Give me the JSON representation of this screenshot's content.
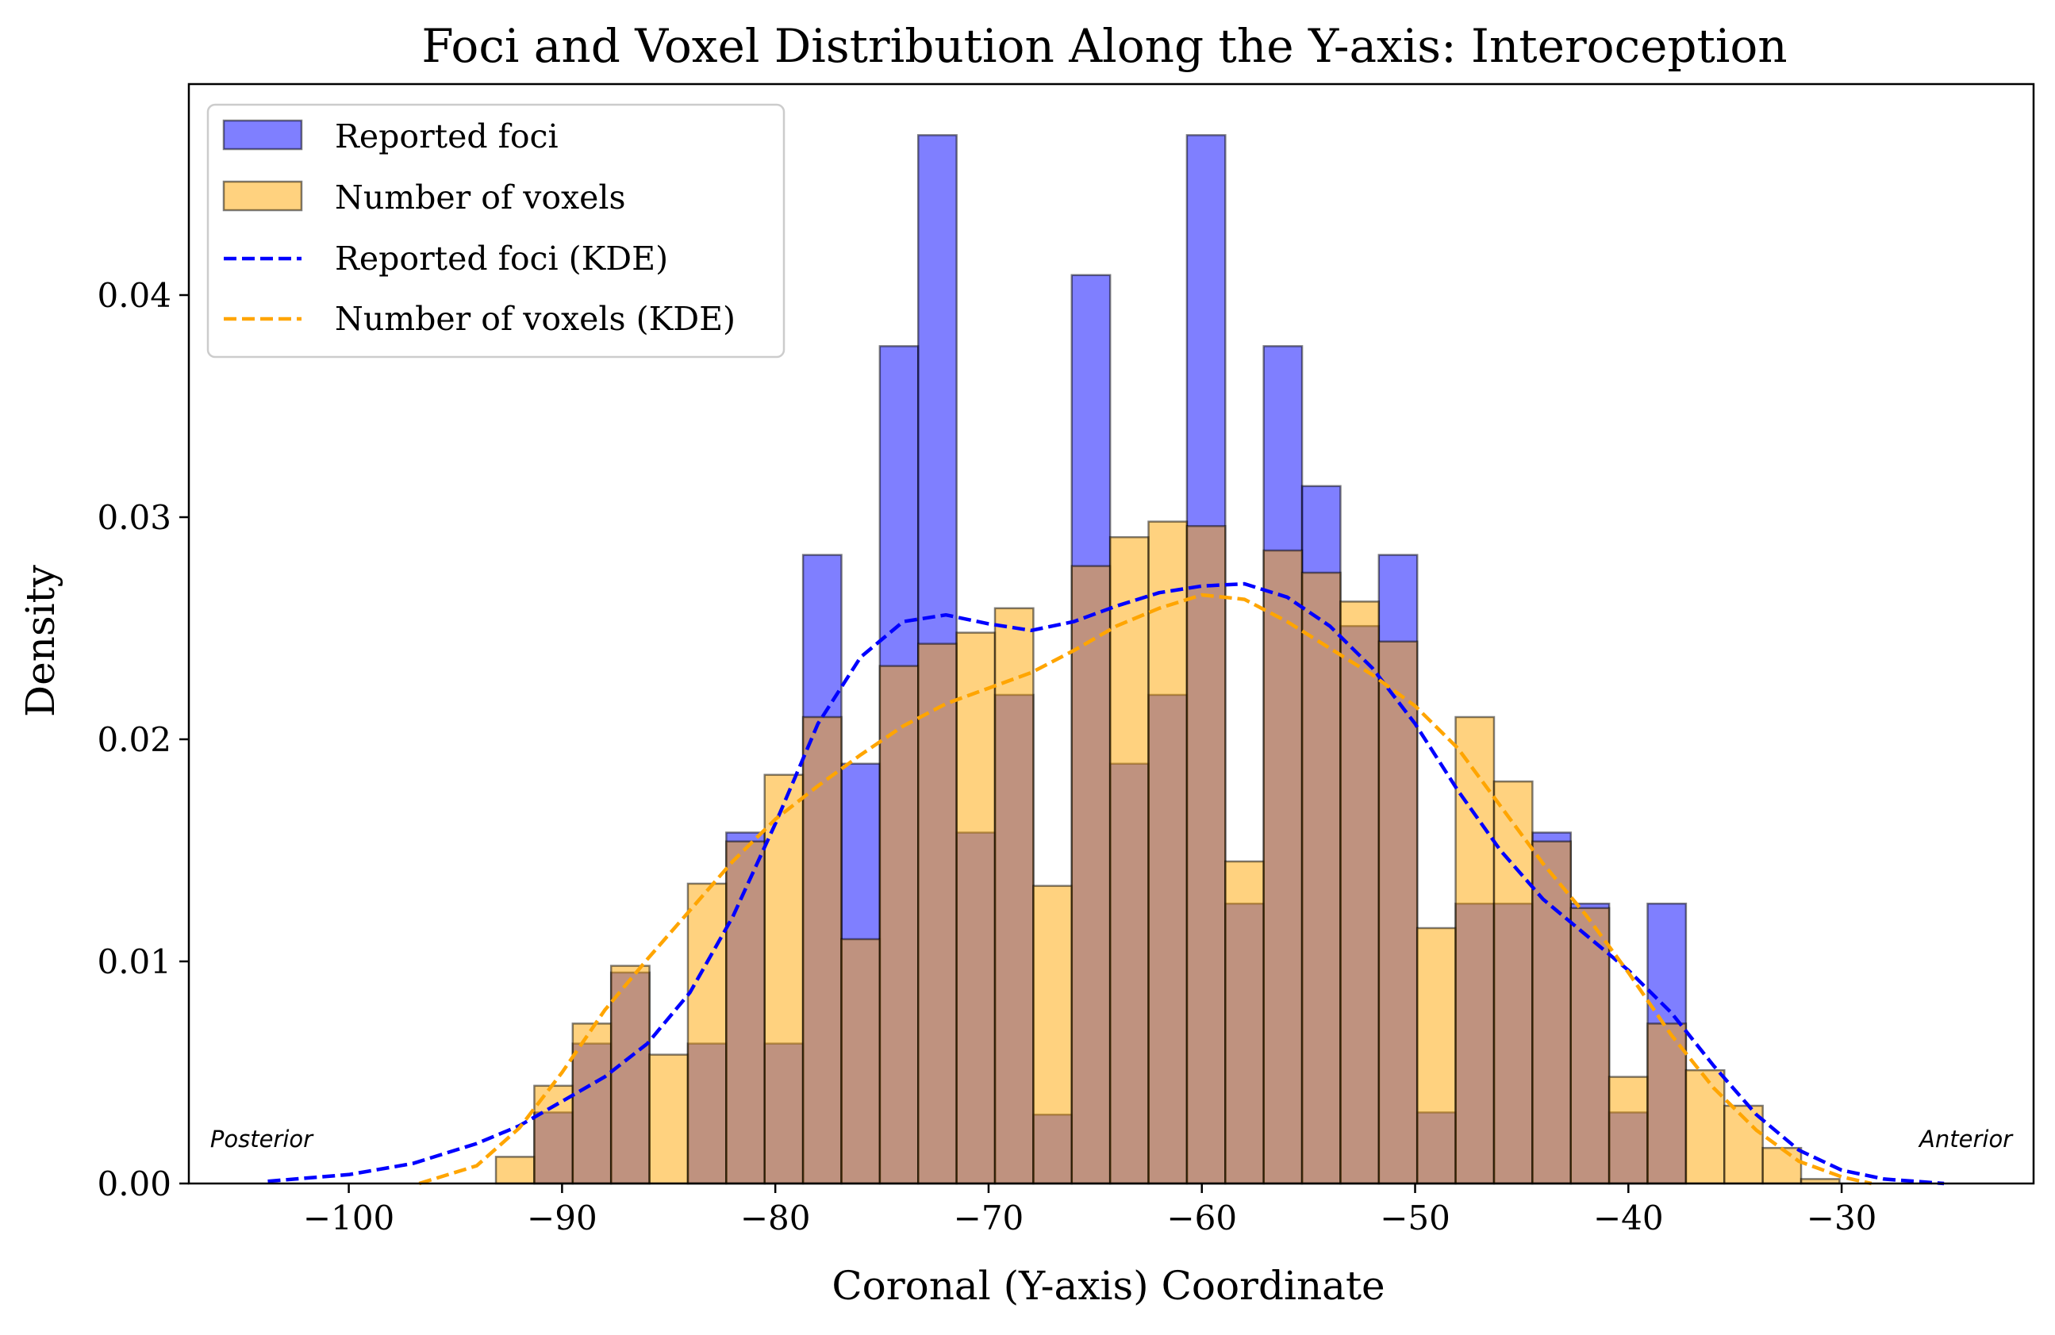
{
  "chart_data": {
    "type": "bar",
    "title": "Foci and Voxel Distribution Along the Y-axis: Interoception",
    "xlabel": "Coronal (Y-axis) Coordinate",
    "ylabel": "Density",
    "xlim": [
      -107.5,
      -21
    ],
    "ylim": [
      0,
      0.0495
    ],
    "xticks": [
      -100,
      -90,
      -80,
      -70,
      -60,
      -50,
      -40,
      -30
    ],
    "xtick_labels": [
      "−100",
      "−90",
      "−80",
      "−70",
      "−60",
      "−50",
      "−40",
      "−30"
    ],
    "yticks": [
      0,
      0.01,
      0.02,
      0.03,
      0.04
    ],
    "ytick_labels": [
      "0.00",
      "0.01",
      "0.02",
      "0.03",
      "0.04"
    ],
    "grid": false,
    "legend_position": "top-left",
    "bin_edges": [
      -93.1,
      -91.3,
      -89.5,
      -87.7,
      -85.9,
      -84.1,
      -82.3,
      -80.5,
      -78.7,
      -76.9,
      -75.1,
      -73.3,
      -71.5,
      -69.7,
      -67.9,
      -66.1,
      -64.3,
      -62.5,
      -60.7,
      -58.9,
      -57.1,
      -55.3,
      -53.5,
      -51.7,
      -49.9,
      -48.1,
      -46.3,
      -44.5,
      -42.7,
      -40.9,
      -39.1,
      -37.3,
      -35.5,
      -33.7,
      -31.9,
      -30.1
    ],
    "series": [
      {
        "name": "Reported foci",
        "kind": "histogram",
        "color": "#0000ff",
        "values": [
          0.0,
          0.0032,
          0.0063,
          0.0095,
          0.0,
          0.0063,
          0.0158,
          0.0063,
          0.0283,
          0.0189,
          0.0377,
          0.0472,
          0.0158,
          0.022,
          0.0031,
          0.0409,
          0.0189,
          0.022,
          0.0472,
          0.0126,
          0.0377,
          0.0314,
          0.0251,
          0.0283,
          0.0032,
          0.0126,
          0.0126,
          0.0158,
          0.0126,
          0.0032,
          0.0126,
          0.0,
          0.0,
          0.0,
          0.0
        ]
      },
      {
        "name": "Number of voxels",
        "kind": "histogram",
        "color": "#ffa500",
        "values": [
          0.0012,
          0.0044,
          0.0072,
          0.0098,
          0.0058,
          0.0135,
          0.0154,
          0.0184,
          0.021,
          0.011,
          0.0233,
          0.0243,
          0.0248,
          0.0259,
          0.0134,
          0.0278,
          0.0291,
          0.0298,
          0.0296,
          0.0145,
          0.0285,
          0.0275,
          0.0262,
          0.0244,
          0.0115,
          0.021,
          0.0181,
          0.0154,
          0.0124,
          0.0048,
          0.0072,
          0.0051,
          0.0035,
          0.0016,
          0.0002
        ]
      },
      {
        "name": "Reported foci (KDE)",
        "kind": "line",
        "style": "dashed",
        "color": "#0000ff",
        "x": [
          -103.8,
          -100,
          -97,
          -94,
          -92,
          -90,
          -88,
          -86,
          -84,
          -82,
          -80,
          -78,
          -76,
          -74,
          -72,
          -70,
          -68,
          -66,
          -64,
          -62,
          -60,
          -58,
          -56,
          -54,
          -52,
          -50,
          -48,
          -46,
          -44,
          -42,
          -40,
          -38,
          -36,
          -34,
          -32,
          -30,
          -28,
          -25.2
        ],
        "y": [
          0.0001,
          0.0004,
          0.0009,
          0.0018,
          0.0026,
          0.0037,
          0.0048,
          0.0063,
          0.0086,
          0.012,
          0.0162,
          0.0207,
          0.0237,
          0.0253,
          0.0256,
          0.0252,
          0.0249,
          0.0253,
          0.026,
          0.0266,
          0.0269,
          0.027,
          0.0264,
          0.0251,
          0.0232,
          0.0207,
          0.0177,
          0.015,
          0.0128,
          0.0112,
          0.0096,
          0.0077,
          0.0053,
          0.0031,
          0.0015,
          0.0006,
          0.0002,
          0.0
        ]
      },
      {
        "name": "Number of voxels (KDE)",
        "kind": "line",
        "style": "dashed",
        "color": "#ffa500",
        "x": [
          -96.7,
          -94,
          -92,
          -90,
          -88,
          -86,
          -84,
          -82,
          -80,
          -78,
          -76,
          -74,
          -72,
          -70,
          -68,
          -66,
          -64,
          -62,
          -60,
          -58,
          -56,
          -54,
          -52,
          -50,
          -48,
          -46,
          -44,
          -42,
          -40,
          -38,
          -36,
          -34,
          -32,
          -30,
          -28.6
        ],
        "y": [
          0.0,
          0.0008,
          0.0025,
          0.005,
          0.0078,
          0.0101,
          0.0123,
          0.0145,
          0.0164,
          0.0179,
          0.0193,
          0.0206,
          0.0216,
          0.0223,
          0.023,
          0.024,
          0.0251,
          0.0259,
          0.0265,
          0.0263,
          0.0253,
          0.0241,
          0.0229,
          0.0215,
          0.0196,
          0.017,
          0.0144,
          0.0121,
          0.0095,
          0.0067,
          0.0043,
          0.0024,
          0.001,
          0.0003,
          0.0
        ]
      }
    ],
    "annotations": [
      {
        "text": "Posterior",
        "x": -106.5,
        "y": 0.002,
        "anchor": "start"
      },
      {
        "text": "Anterior",
        "x": -22,
        "y": 0.002,
        "anchor": "end"
      }
    ]
  }
}
